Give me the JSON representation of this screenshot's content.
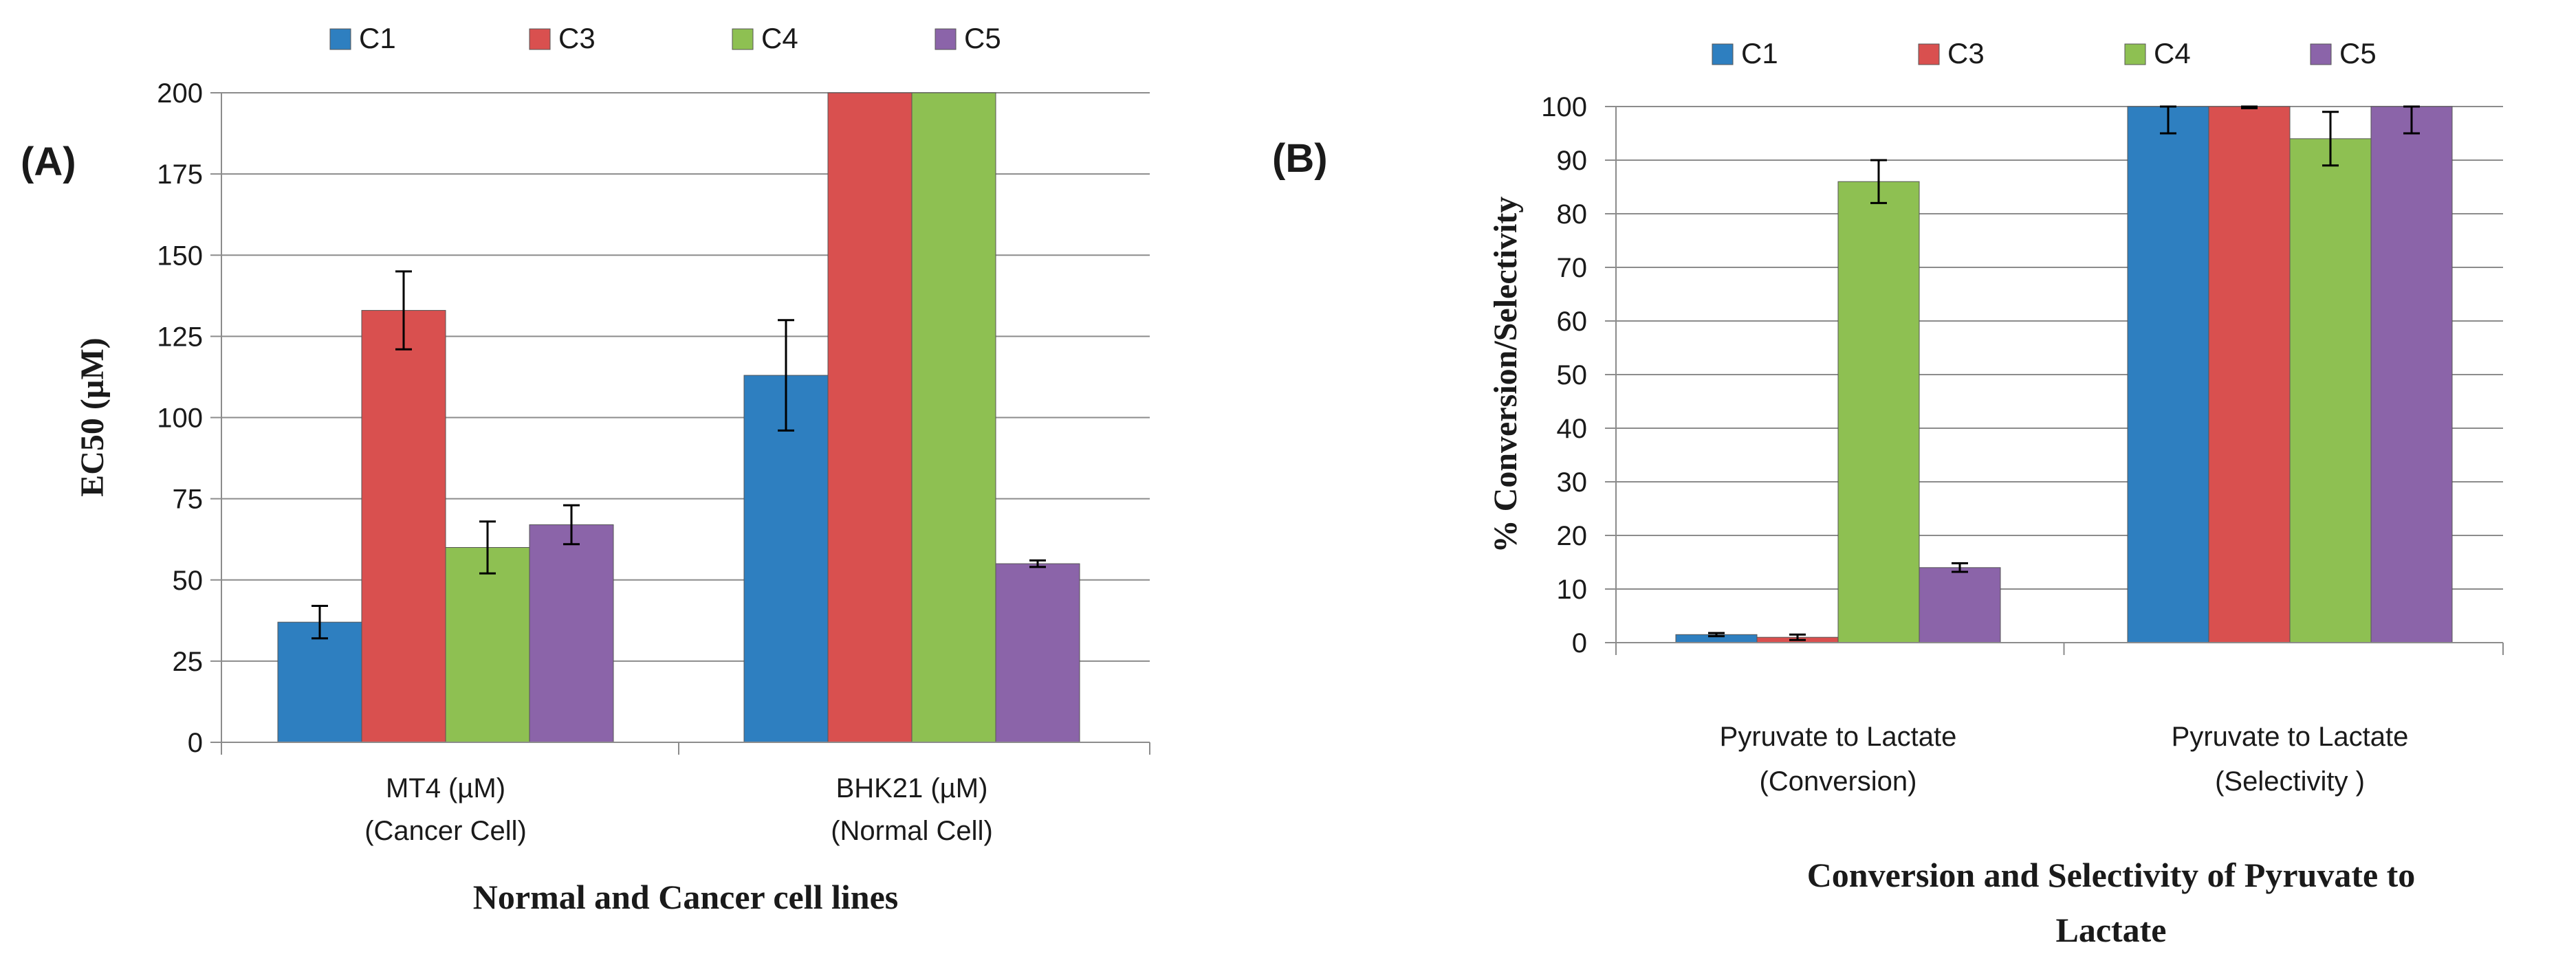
{
  "chart_data": [
    {
      "panel_label": "(A)",
      "type": "bar",
      "categories": [
        [
          "MT4 (µM)",
          "(Cancer Cell)"
        ],
        [
          "BHK21  (µM)",
          "(Normal Cell)"
        ]
      ],
      "series": [
        {
          "name": "C1",
          "color": "#2e7fc0",
          "values": [
            37,
            113
          ],
          "errors": [
            5,
            17
          ]
        },
        {
          "name": "C3",
          "color": "#d9504f",
          "values": [
            133,
            200
          ],
          "errors": [
            12,
            0
          ]
        },
        {
          "name": "C4",
          "color": "#8ec052",
          "values": [
            60,
            200
          ],
          "errors": [
            8,
            0
          ]
        },
        {
          "name": "C5",
          "color": "#8b64a9",
          "values": [
            67,
            55
          ],
          "errors": [
            6,
            1
          ]
        }
      ],
      "ylabel": "EC50 (µM)",
      "xlabel": "Normal and Cancer cell lines",
      "ylim": [
        0,
        200
      ],
      "yticks": [
        0,
        25,
        50,
        75,
        100,
        125,
        150,
        175,
        200
      ],
      "legend": "top",
      "grid": true
    },
    {
      "panel_label": "(B)",
      "type": "bar",
      "categories": [
        [
          "Pyruvate to Lactate",
          "(Conversion)"
        ],
        [
          "Pyruvate to Lactate",
          "(Selectivity )"
        ]
      ],
      "series": [
        {
          "name": "C1",
          "color": "#2e7fc0",
          "values": [
            1.5,
            100
          ],
          "errors": [
            0.3,
            5
          ]
        },
        {
          "name": "C3",
          "color": "#d9504f",
          "values": [
            1,
            100
          ],
          "errors": [
            0.5,
            0.3
          ]
        },
        {
          "name": "C4",
          "color": "#8ec052",
          "values": [
            86,
            94
          ],
          "errors": [
            4,
            5
          ]
        },
        {
          "name": "C5",
          "color": "#8b64a9",
          "values": [
            14,
            100
          ],
          "errors": [
            0.8,
            5
          ]
        }
      ],
      "ylabel": "% Conversion/Selectivity",
      "xlabel": [
        "Conversion and Selectivity of Pyruvate to",
        "Lactate"
      ],
      "ylim": [
        0,
        100
      ],
      "yticks": [
        0,
        10,
        20,
        30,
        40,
        50,
        60,
        70,
        80,
        90,
        100
      ],
      "legend": "top",
      "grid": true
    }
  ]
}
